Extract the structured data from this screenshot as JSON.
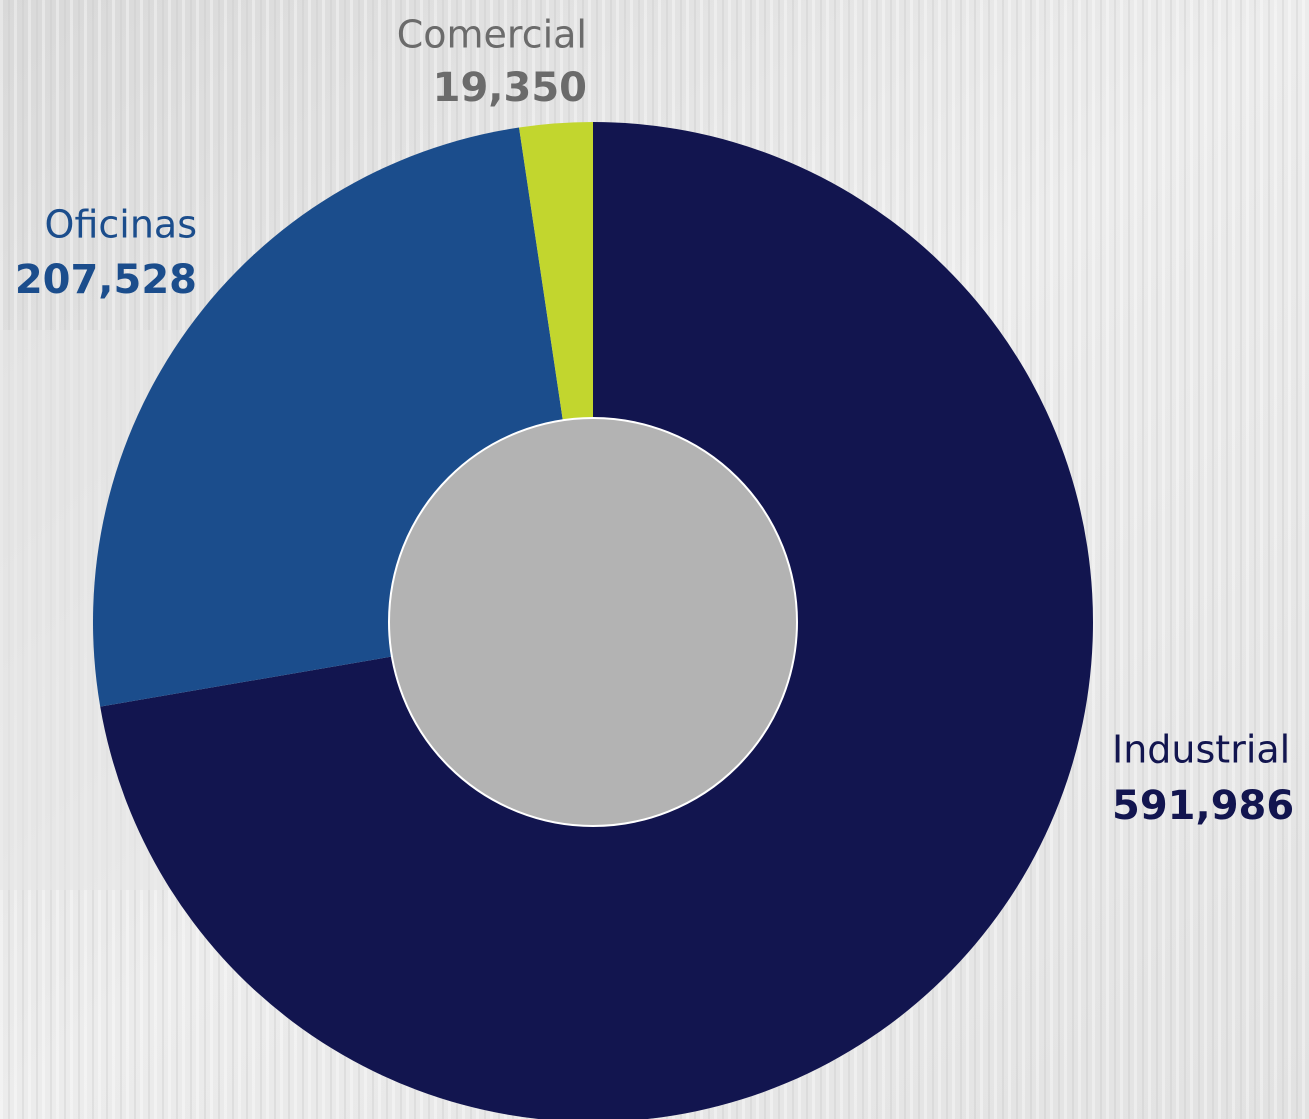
{
  "chart_data": {
    "type": "donut",
    "categories": [
      "Industrial",
      "Oficinas",
      "Comercial"
    ],
    "values": [
      591986,
      207528,
      19350
    ],
    "value_labels": [
      "591,986",
      "207,528",
      "19,350"
    ],
    "colors": [
      "#12154f",
      "#1b4d8c",
      "#c2d62e"
    ],
    "label_colors": [
      "#12154f",
      "#1b4d8c",
      "#6b6b6b"
    ]
  }
}
